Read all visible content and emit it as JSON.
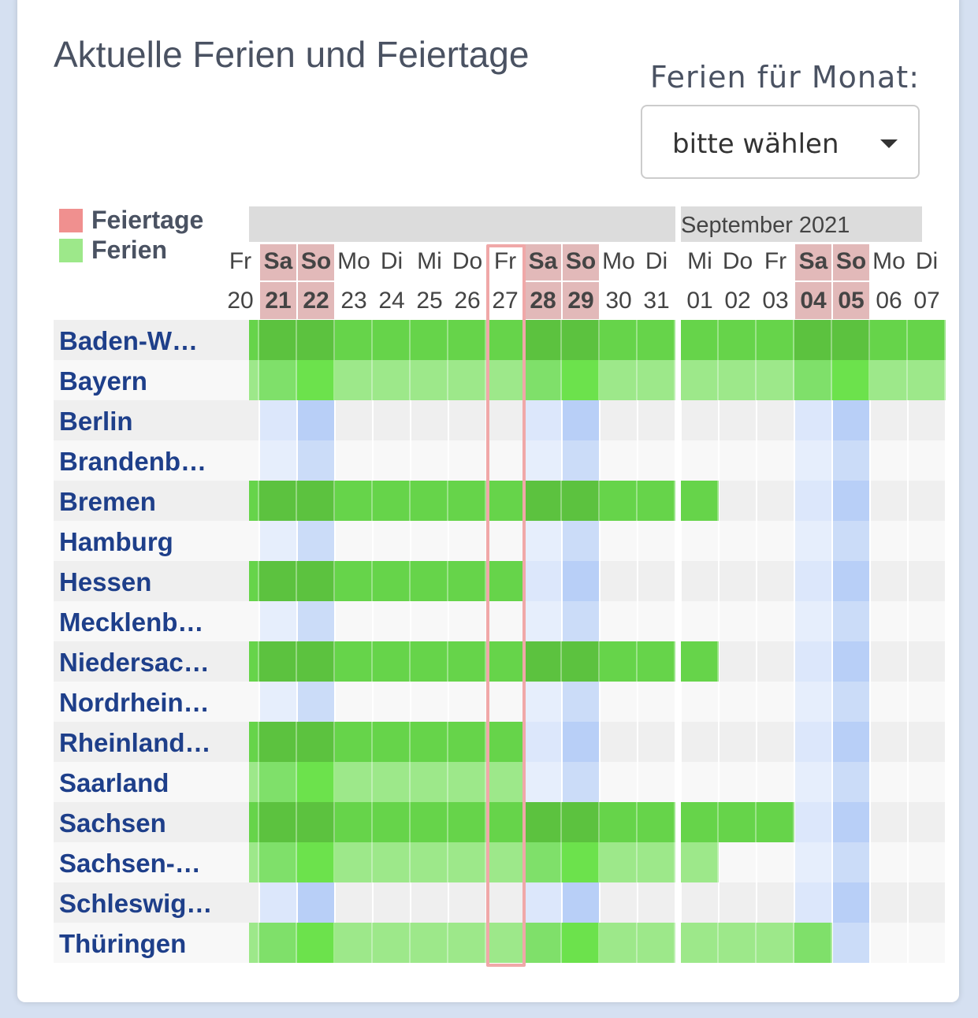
{
  "header": {
    "title": "Aktuelle Ferien und Feiertage",
    "month_label": "Ferien für Monat:",
    "month_select": "bitte wählen"
  },
  "legend": [
    {
      "label": "Feiertage",
      "color": "#f0908f"
    },
    {
      "label": "Ferien",
      "color": "#9de88a"
    }
  ],
  "september_label": "September 2021",
  "today_column": 7,
  "columns": [
    {
      "weekday": "Fr",
      "day": "20"
    },
    {
      "weekday": "Sa",
      "day": "21",
      "weekend": "sat"
    },
    {
      "weekday": "So",
      "day": "22",
      "weekend": "sun"
    },
    {
      "weekday": "Mo",
      "day": "23"
    },
    {
      "weekday": "Di",
      "day": "24"
    },
    {
      "weekday": "Mi",
      "day": "25"
    },
    {
      "weekday": "Do",
      "day": "26"
    },
    {
      "weekday": "Fr",
      "day": "27"
    },
    {
      "weekday": "Sa",
      "day": "28",
      "weekend": "sat"
    },
    {
      "weekday": "So",
      "day": "29",
      "weekend": "sun"
    },
    {
      "weekday": "Mo",
      "day": "30"
    },
    {
      "weekday": "Di",
      "day": "31"
    },
    {
      "weekday": "Mi",
      "day": "01"
    },
    {
      "weekday": "Do",
      "day": "02"
    },
    {
      "weekday": "Fr",
      "day": "03"
    },
    {
      "weekday": "Sa",
      "day": "04",
      "weekend": "sat"
    },
    {
      "weekday": "So",
      "day": "05",
      "weekend": "sun"
    },
    {
      "weekday": "Mo",
      "day": "06"
    },
    {
      "weekday": "Di",
      "day": "07"
    }
  ],
  "rows": [
    {
      "name": "Baden-W…",
      "ferien": [
        1,
        1,
        1,
        1,
        1,
        1,
        1,
        1,
        1,
        1,
        1,
        1,
        1,
        1,
        1,
        1,
        1,
        1,
        1
      ]
    },
    {
      "name": "Bayern",
      "ferien": [
        1,
        1,
        1,
        1,
        1,
        1,
        1,
        1,
        1,
        1,
        1,
        1,
        1,
        1,
        1,
        1,
        1,
        1,
        1
      ]
    },
    {
      "name": "Berlin",
      "ferien": [
        0,
        0,
        0,
        0,
        0,
        0,
        0,
        0,
        0,
        0,
        0,
        0,
        0,
        0,
        0,
        0,
        0,
        0,
        0
      ]
    },
    {
      "name": "Brandenb…",
      "ferien": [
        0,
        0,
        0,
        0,
        0,
        0,
        0,
        0,
        0,
        0,
        0,
        0,
        0,
        0,
        0,
        0,
        0,
        0,
        0
      ]
    },
    {
      "name": "Bremen",
      "ferien": [
        1,
        1,
        1,
        1,
        1,
        1,
        1,
        1,
        1,
        1,
        1,
        1,
        1,
        0,
        0,
        0,
        0,
        0,
        0
      ]
    },
    {
      "name": "Hamburg",
      "ferien": [
        0,
        0,
        0,
        0,
        0,
        0,
        0,
        0,
        0,
        0,
        0,
        0,
        0,
        0,
        0,
        0,
        0,
        0,
        0
      ]
    },
    {
      "name": "Hessen",
      "ferien": [
        1,
        1,
        1,
        1,
        1,
        1,
        1,
        1,
        0,
        0,
        0,
        0,
        0,
        0,
        0,
        0,
        0,
        0,
        0
      ]
    },
    {
      "name": "Mecklenb…",
      "ferien": [
        0,
        0,
        0,
        0,
        0,
        0,
        0,
        0,
        0,
        0,
        0,
        0,
        0,
        0,
        0,
        0,
        0,
        0,
        0
      ]
    },
    {
      "name": "Niedersac…",
      "ferien": [
        1,
        1,
        1,
        1,
        1,
        1,
        1,
        1,
        1,
        1,
        1,
        1,
        1,
        0,
        0,
        0,
        0,
        0,
        0
      ]
    },
    {
      "name": "Nordrhein…",
      "ferien": [
        0,
        0,
        0,
        0,
        0,
        0,
        0,
        0,
        0,
        0,
        0,
        0,
        0,
        0,
        0,
        0,
        0,
        0,
        0
      ]
    },
    {
      "name": "Rheinland…",
      "ferien": [
        1,
        1,
        1,
        1,
        1,
        1,
        1,
        1,
        0,
        0,
        0,
        0,
        0,
        0,
        0,
        0,
        0,
        0,
        0
      ]
    },
    {
      "name": "Saarland",
      "ferien": [
        1,
        1,
        1,
        1,
        1,
        1,
        1,
        1,
        0,
        0,
        0,
        0,
        0,
        0,
        0,
        0,
        0,
        0,
        0
      ]
    },
    {
      "name": "Sachsen",
      "ferien": [
        1,
        1,
        1,
        1,
        1,
        1,
        1,
        1,
        1,
        1,
        1,
        1,
        1,
        1,
        1,
        0,
        0,
        0,
        0
      ]
    },
    {
      "name": "Sachsen-…",
      "ferien": [
        1,
        1,
        1,
        1,
        1,
        1,
        1,
        1,
        1,
        1,
        1,
        1,
        1,
        0,
        0,
        0,
        0,
        0,
        0
      ]
    },
    {
      "name": "Schleswig…",
      "ferien": [
        0,
        0,
        0,
        0,
        0,
        0,
        0,
        0,
        0,
        0,
        0,
        0,
        0,
        0,
        0,
        0,
        0,
        0,
        0
      ]
    },
    {
      "name": "Thüringen",
      "ferien": [
        1,
        1,
        1,
        1,
        1,
        1,
        1,
        1,
        1,
        1,
        1,
        1,
        1,
        1,
        1,
        1,
        0,
        0,
        0
      ]
    }
  ]
}
